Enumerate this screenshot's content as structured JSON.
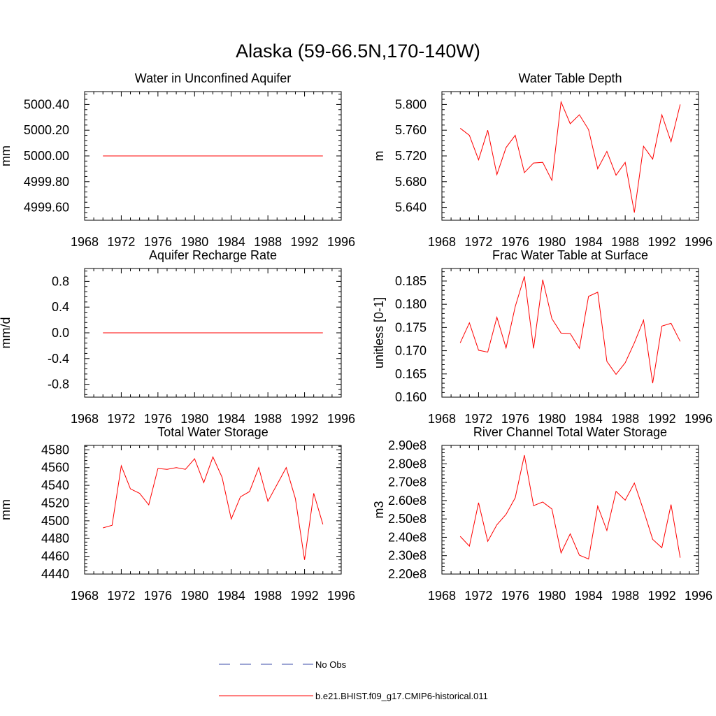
{
  "figure": {
    "title": "Alaska (59-66.5N,170-140W)",
    "line_color": "#ff0000",
    "obs_color": "#3b4ba8"
  },
  "legend": {
    "items": [
      {
        "label": "No Obs",
        "style": "dashed",
        "color": "#3b4ba8"
      },
      {
        "label": "b.e21.BHIST.f09_g17.CMIP6-historical.011",
        "style": "solid",
        "color": "#ff0000"
      }
    ]
  },
  "chart_data": [
    {
      "type": "line",
      "title": "Water in Unconfined Aquifer",
      "xlabel": "",
      "ylabel": "mm",
      "xlim": [
        1968,
        1996
      ],
      "ylim": [
        4999.5,
        5000.5
      ],
      "xticks": [
        "1968",
        "1972",
        "1976",
        "1980",
        "1984",
        "1988",
        "1992",
        "1996"
      ],
      "yticks": [
        4999.6,
        4999.8,
        5000.0,
        5000.2,
        5000.4
      ],
      "ytick_labels": [
        "4999.60",
        "4999.80",
        "5000.00",
        "5000.20",
        "5000.40"
      ],
      "series": [
        {
          "x": [
            1970,
            1994
          ],
          "values": [
            5000.0,
            5000.0
          ]
        }
      ]
    },
    {
      "type": "line",
      "title": "Water Table Depth",
      "xlabel": "",
      "ylabel": "m",
      "xlim": [
        1968,
        1996
      ],
      "ylim": [
        5.62,
        5.82
      ],
      "xticks": [
        "1968",
        "1972",
        "1976",
        "1980",
        "1984",
        "1988",
        "1992",
        "1996"
      ],
      "yticks": [
        5.64,
        5.68,
        5.72,
        5.76,
        5.8
      ],
      "ytick_labels": [
        "5.640",
        "5.680",
        "5.720",
        "5.760",
        "5.800"
      ],
      "series": [
        {
          "x": [
            1970,
            1971,
            1972,
            1973,
            1974,
            1975,
            1976,
            1977,
            1978,
            1979,
            1980,
            1981,
            1982,
            1983,
            1984,
            1985,
            1986,
            1987,
            1988,
            1989,
            1990,
            1991,
            1992,
            1993,
            1994
          ],
          "values": [
            5.763,
            5.752,
            5.714,
            5.76,
            5.691,
            5.733,
            5.752,
            5.694,
            5.709,
            5.71,
            5.682,
            5.804,
            5.77,
            5.784,
            5.761,
            5.7,
            5.727,
            5.69,
            5.71,
            5.632,
            5.735,
            5.715,
            5.784,
            5.742,
            5.8
          ]
        }
      ]
    },
    {
      "type": "line",
      "title": "Aquifer Recharge Rate",
      "xlabel": "",
      "ylabel": "mm/d",
      "xlim": [
        1968,
        1996
      ],
      "ylim": [
        -1.0,
        1.0
      ],
      "xticks": [
        "1968",
        "1972",
        "1976",
        "1980",
        "1984",
        "1988",
        "1992",
        "1996"
      ],
      "yticks": [
        -0.8,
        -0.4,
        0.0,
        0.4,
        0.8
      ],
      "ytick_labels": [
        "-0.8",
        "-0.4",
        "0.0",
        "0.4",
        "0.8"
      ],
      "series": [
        {
          "x": [
            1970,
            1994
          ],
          "values": [
            0.0,
            0.0
          ]
        }
      ]
    },
    {
      "type": "line",
      "title": "Frac Water Table at Surface",
      "xlabel": "",
      "ylabel": "unitless [0-1]",
      "xlim": [
        1968,
        1996
      ],
      "ylim": [
        0.16,
        0.1877
      ],
      "xticks": [
        "1968",
        "1972",
        "1976",
        "1980",
        "1984",
        "1988",
        "1992",
        "1996"
      ],
      "yticks": [
        0.16,
        0.165,
        0.17,
        0.175,
        0.18,
        0.185
      ],
      "ytick_labels": [
        "0.160",
        "0.165",
        "0.170",
        "0.175",
        "0.180",
        "0.185"
      ],
      "series": [
        {
          "x": [
            1970,
            1971,
            1972,
            1973,
            1974,
            1975,
            1976,
            1977,
            1978,
            1979,
            1980,
            1981,
            1982,
            1983,
            1984,
            1985,
            1986,
            1987,
            1988,
            1989,
            1990,
            1991,
            1992,
            1993,
            1994
          ],
          "values": [
            0.1717,
            0.176,
            0.1701,
            0.1697,
            0.1772,
            0.1706,
            0.1795,
            0.186,
            0.1705,
            0.1853,
            0.1769,
            0.1738,
            0.1737,
            0.1705,
            0.1817,
            0.1826,
            0.1677,
            0.1649,
            0.1674,
            0.1717,
            0.1766,
            0.163,
            0.1753,
            0.1759,
            0.172
          ]
        }
      ]
    },
    {
      "type": "line",
      "title": "Total Water Storage",
      "xlabel": "",
      "ylabel": "mm",
      "xlim": [
        1968,
        1996
      ],
      "ylim": [
        4440,
        4585
      ],
      "xticks": [
        "1968",
        "1972",
        "1976",
        "1980",
        "1984",
        "1988",
        "1992",
        "1996"
      ],
      "yticks": [
        4440,
        4460,
        4480,
        4500,
        4520,
        4540,
        4560,
        4580
      ],
      "ytick_labels": [
        "4440",
        "4460",
        "4480",
        "4500",
        "4520",
        "4540",
        "4560",
        "4580"
      ],
      "series": [
        {
          "x": [
            1970,
            1971,
            1972,
            1973,
            1974,
            1975,
            1976,
            1977,
            1978,
            1979,
            1980,
            1981,
            1982,
            1983,
            1984,
            1985,
            1986,
            1987,
            1988,
            1989,
            1990,
            1991,
            1992,
            1993,
            1994
          ],
          "values": [
            4492,
            4495,
            4562,
            4536,
            4531,
            4518,
            4559,
            4558,
            4560,
            4558,
            4570,
            4543,
            4572,
            4549,
            4502,
            4527,
            4533,
            4560,
            4522,
            4541,
            4560,
            4525,
            4456,
            4531,
            4496
          ]
        }
      ]
    },
    {
      "type": "line",
      "title": "River Channel Total Water Storage",
      "xlabel": "",
      "ylabel": "m3",
      "xlim": [
        1968,
        1996
      ],
      "ylim": [
        220000000,
        290000000
      ],
      "xticks": [
        "1968",
        "1972",
        "1976",
        "1980",
        "1984",
        "1988",
        "1992",
        "1996"
      ],
      "yticks": [
        220000000,
        230000000,
        240000000,
        250000000,
        260000000,
        270000000,
        280000000,
        290000000
      ],
      "ytick_labels": [
        "2.20e8",
        "2.30e8",
        "2.40e8",
        "2.50e8",
        "2.60e8",
        "2.70e8",
        "2.80e8",
        "2.90e8"
      ],
      "series": [
        {
          "x": [
            1970,
            1971,
            1972,
            1973,
            1974,
            1975,
            1976,
            1977,
            1978,
            1979,
            1980,
            1981,
            1982,
            1983,
            1984,
            1985,
            1986,
            1987,
            1988,
            1989,
            1990,
            1991,
            1992,
            1993,
            1994
          ],
          "values": [
            240500000,
            235200000,
            258800000,
            237800000,
            246800000,
            252500000,
            261500000,
            284700000,
            257200000,
            259200000,
            255400000,
            231500000,
            241900000,
            230300000,
            228200000,
            257000000,
            243700000,
            265000000,
            260200000,
            269500000,
            254700000,
            238900000,
            234300000,
            257800000,
            228900000
          ]
        }
      ]
    }
  ]
}
